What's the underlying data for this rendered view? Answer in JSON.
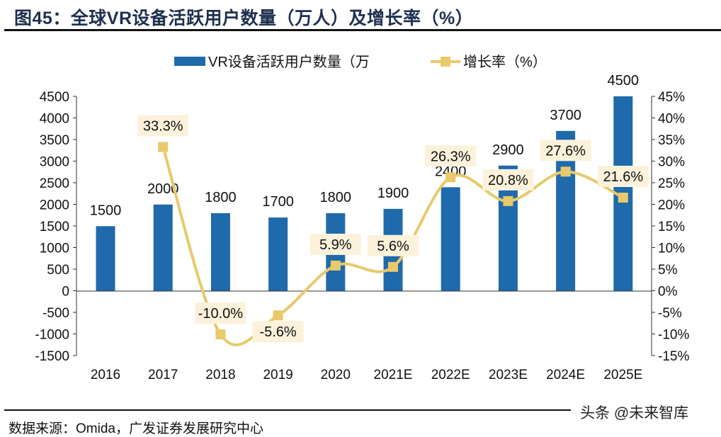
{
  "title": "图45：全球VR设备活跃用户数量（万人）及增长率（%）",
  "source": "数据来源：Omida，广发证券发展研究中心",
  "watermark": "头条 @未来智库",
  "chart_data": {
    "type": "bar+line",
    "categories": [
      "2016",
      "2017",
      "2018",
      "2019",
      "2020",
      "2021E",
      "2022E",
      "2023E",
      "2024E",
      "2025E"
    ],
    "series": [
      {
        "name": "VR设备活跃用户数量（万",
        "type": "bar",
        "axis": "left",
        "color": "#1f6aab",
        "values": [
          1500,
          2000,
          1800,
          1700,
          1800,
          1900,
          2400,
          2900,
          3700,
          4500
        ]
      },
      {
        "name": "增长率（%）",
        "type": "line",
        "axis": "right",
        "color": "#e8c96b",
        "values": [
          null,
          33.3,
          -10.0,
          -5.6,
          5.9,
          5.6,
          26.3,
          20.8,
          27.6,
          21.6
        ]
      }
    ],
    "ylim_left": [
      -1500,
      4500
    ],
    "yticks_left": [
      "4500",
      "4000",
      "3500",
      "3000",
      "2500",
      "2000",
      "1500",
      "1000",
      "500",
      "0",
      "-500",
      "-1000",
      "-1500"
    ],
    "ylim_right": [
      -15,
      45
    ],
    "yticks_right": [
      "45%",
      "40%",
      "35%",
      "30%",
      "25%",
      "20%",
      "15%",
      "10%",
      "5%",
      "0%",
      "-5%",
      "-10%",
      "-15%"
    ],
    "bar_labels": [
      "1500",
      "2000",
      "1800",
      "1700",
      "1800",
      "1900",
      "2400",
      "2900",
      "3700",
      "4500"
    ],
    "line_labels": [
      "",
      "33.3%",
      "-10.0%",
      "-5.6%",
      "5.9%",
      "5.6%",
      "26.3%",
      "20.8%",
      "27.6%",
      "21.6%"
    ],
    "legend": "top"
  }
}
